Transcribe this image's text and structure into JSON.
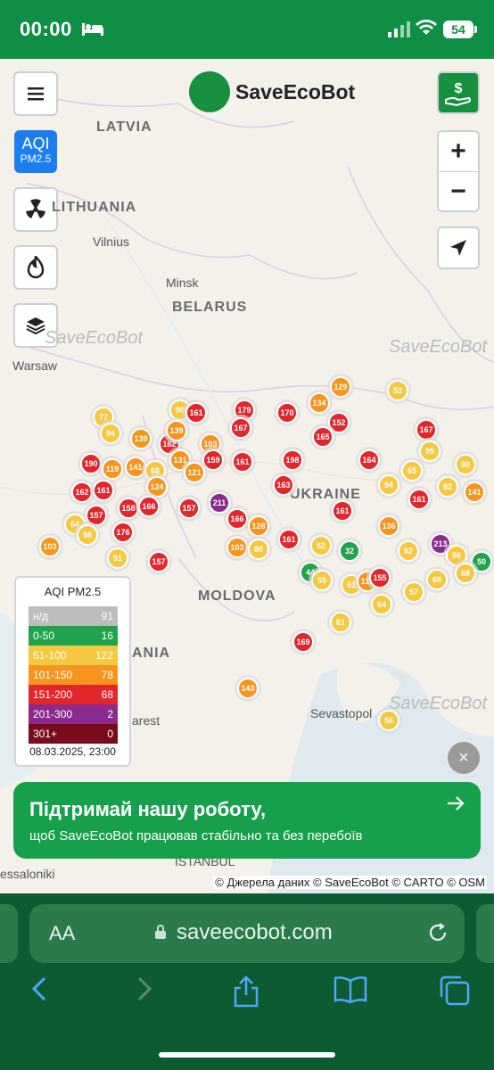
{
  "status_bar": {
    "time": "00:00",
    "battery": "54"
  },
  "header": {
    "logo_text": "SaveEcoBot"
  },
  "controls": {
    "aqi_line1": "AQI",
    "aqi_line2": "PM2.5",
    "zoom_in": "+",
    "zoom_out": "−"
  },
  "map_labels": {
    "countries": [
      "LATVIA",
      "LITHUANIA",
      "BELARUS",
      "UKRAINE",
      "MOLDOVA",
      "ANIA"
    ],
    "cities": [
      "Vilnius",
      "Minsk",
      "Warsaw",
      "Sevastopol",
      "arest",
      "essaloniki",
      "ISTANBUL"
    ],
    "watermark": "SaveEcoBot"
  },
  "markers": [
    {
      "v": "77"
    },
    {
      "v": "94"
    },
    {
      "v": "90"
    },
    {
      "v": "161"
    },
    {
      "v": "179"
    },
    {
      "v": "170"
    },
    {
      "v": "134"
    },
    {
      "v": "129"
    },
    {
      "v": "53"
    },
    {
      "v": "139"
    },
    {
      "v": "162"
    },
    {
      "v": "139"
    },
    {
      "v": "103"
    },
    {
      "v": "167"
    },
    {
      "v": "152"
    },
    {
      "v": "167"
    },
    {
      "v": "165"
    },
    {
      "v": "190"
    },
    {
      "v": "119"
    },
    {
      "v": "141"
    },
    {
      "v": "68"
    },
    {
      "v": "131"
    },
    {
      "v": "159"
    },
    {
      "v": "161"
    },
    {
      "v": "198"
    },
    {
      "v": "164"
    },
    {
      "v": "65"
    },
    {
      "v": "95"
    },
    {
      "v": "80"
    },
    {
      "v": "162"
    },
    {
      "v": "161"
    },
    {
      "v": "124"
    },
    {
      "v": "121"
    },
    {
      "v": "163"
    },
    {
      "v": "94"
    },
    {
      "v": "82"
    },
    {
      "v": "141"
    },
    {
      "v": "157"
    },
    {
      "v": "158"
    },
    {
      "v": "166"
    },
    {
      "v": "157"
    },
    {
      "v": "211"
    },
    {
      "v": "166"
    },
    {
      "v": "161"
    },
    {
      "v": "161"
    },
    {
      "v": "64"
    },
    {
      "v": "98"
    },
    {
      "v": "176"
    },
    {
      "v": "128"
    },
    {
      "v": "136"
    },
    {
      "v": "103"
    },
    {
      "v": "91"
    },
    {
      "v": "157"
    },
    {
      "v": "103"
    },
    {
      "v": "80"
    },
    {
      "v": "161"
    },
    {
      "v": "52"
    },
    {
      "v": "32"
    },
    {
      "v": "62"
    },
    {
      "v": "213"
    },
    {
      "v": "56"
    },
    {
      "v": "50"
    },
    {
      "v": "44"
    },
    {
      "v": "55"
    },
    {
      "v": "61"
    },
    {
      "v": "113"
    },
    {
      "v": "155"
    },
    {
      "v": "69"
    },
    {
      "v": "68"
    },
    {
      "v": "57"
    },
    {
      "v": "64"
    },
    {
      "v": "61"
    },
    {
      "v": "169"
    },
    {
      "v": "143"
    },
    {
      "v": "56"
    }
  ],
  "legend": {
    "title": "AQI PM2.5",
    "rows": [
      {
        "range": "н/д",
        "count": "91",
        "color": "#bdbdbd"
      },
      {
        "range": "0-50",
        "count": "16",
        "color": "#20a34a"
      },
      {
        "range": "51-100",
        "count": "122",
        "color": "#f5c842"
      },
      {
        "range": "101-150",
        "count": "78",
        "color": "#f7941d"
      },
      {
        "range": "151-200",
        "count": "68",
        "color": "#e3262b"
      },
      {
        "range": "201-300",
        "count": "2",
        "color": "#8b2a8e"
      },
      {
        "range": "301+",
        "count": "0",
        "color": "#7a0b1c"
      }
    ],
    "date": "08.03.2025, 23:00"
  },
  "banner": {
    "title": "Підтримай нашу роботу,",
    "subtitle": "щоб SaveEcoBot працював стабільно та без перебоїв",
    "close": "×"
  },
  "attribution": "© Джерела даних © SaveEcoBot © CARTO © OSM",
  "browser": {
    "aa": "AA",
    "url": "saveecobot.com"
  },
  "colors": {
    "green": "#0e8f45",
    "blue_link": "#4ea6ff"
  }
}
